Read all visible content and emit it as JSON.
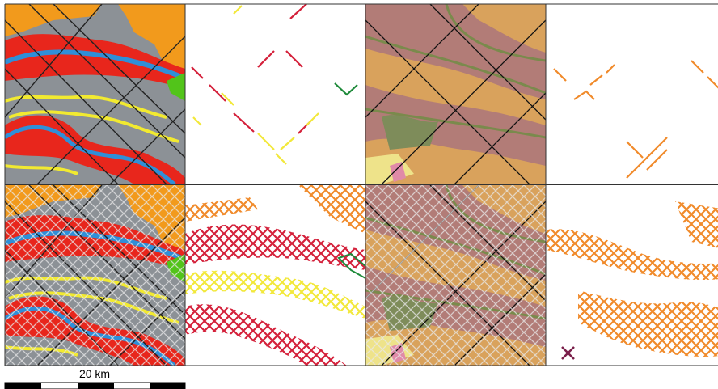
{
  "scale_bar": {
    "label": "20 km"
  }
}
